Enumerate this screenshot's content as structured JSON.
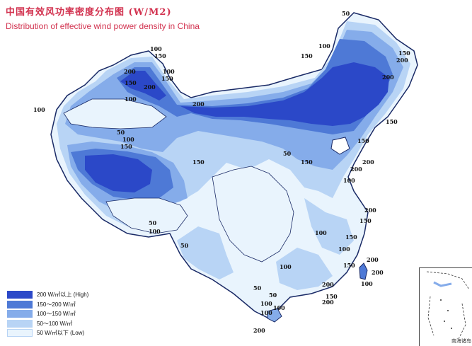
{
  "title": {
    "cn": "中国有效风功率密度分布图 (W/M2)",
    "en": "Distribution of effective wind power density in China"
  },
  "legend": [
    {
      "label": "200 W/㎡以上 (High)",
      "color": "#2b48c8"
    },
    {
      "label": "150～200 W/㎡",
      "color": "#4e79d6"
    },
    {
      "label": "100～150 W/㎡",
      "color": "#85acea"
    },
    {
      "label": "50～100 W/㎡",
      "color": "#b8d4f5"
    },
    {
      "label": "50 W/㎡以下 (Low)",
      "color": "#e9f4fd"
    }
  ],
  "contour_labels": [
    "50",
    "100",
    "150",
    "200",
    "100",
    "150",
    "200",
    "100",
    "150",
    "200",
    "150",
    "200",
    "100",
    "50",
    "100",
    "150",
    "150",
    "100",
    "150",
    "200",
    "150",
    "200",
    "200",
    "150",
    "100",
    "50",
    "50",
    "50",
    "100",
    "100",
    "150",
    "200",
    "150",
    "100",
    "150",
    "100",
    "200",
    "200",
    "100",
    "150",
    "200",
    "150",
    "200",
    "100",
    "50",
    "50",
    "100",
    "100",
    "200"
  ],
  "inset": {
    "caption": "南海诸岛"
  },
  "colors": {
    "title": "#d2324f",
    "border": "#1a2a66"
  }
}
